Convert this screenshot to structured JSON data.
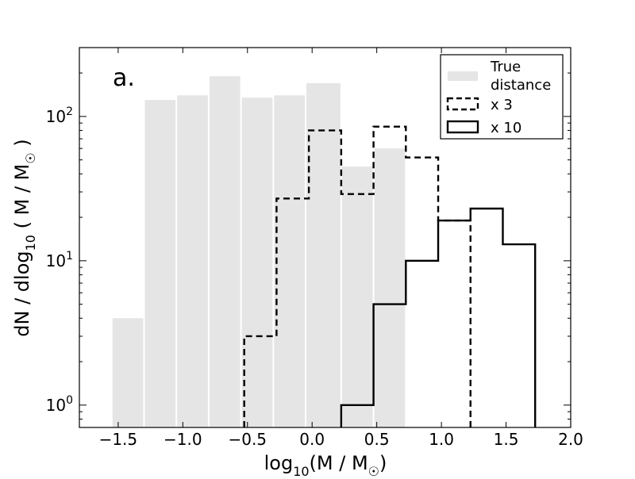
{
  "chart_data": {
    "type": "histogram",
    "panel_label": "a.",
    "xlabel": "log₁₀(M / M☉)",
    "xlabel_parts": {
      "pre": "log",
      "sub": "10",
      "mid": "(M / M",
      "sun": "☉",
      "post": ")"
    },
    "ylabel": "dN / dlog₁₀ ( M / M☉ )",
    "ylabel_parts": {
      "pre": "dN / dlog",
      "sub": "10",
      "mid": " ( M / M",
      "sun": "☉",
      "post": " )"
    },
    "xlim": [
      -1.8,
      2.0
    ],
    "ylim": [
      0.7,
      300
    ],
    "yscale": "log",
    "xticks": [
      -1.5,
      -1.0,
      -0.5,
      0.0,
      0.5,
      1.0,
      1.5,
      2.0
    ],
    "xtick_labels": [
      "−1.5",
      "−1.0",
      "−0.5",
      "0.0",
      "0.5",
      "1.0",
      "1.5",
      "2.0"
    ],
    "yticks": [
      {
        "value": 1,
        "base": "10",
        "exp": "0"
      },
      {
        "value": 10,
        "base": "10",
        "exp": "1"
      },
      {
        "value": 100,
        "base": "10",
        "exp": "2"
      }
    ],
    "grid": false,
    "legend_position": "top-right",
    "series": [
      {
        "name": "True distance",
        "legend_lines": [
          "True",
          "distance"
        ],
        "style": "filled",
        "color": "#e5e5e5",
        "bins": [
          {
            "x0": -1.55,
            "x1": -1.3,
            "value": 4
          },
          {
            "x0": -1.3,
            "x1": -1.05,
            "value": 130
          },
          {
            "x0": -1.05,
            "x1": -0.8,
            "value": 140
          },
          {
            "x0": -0.8,
            "x1": -0.55,
            "value": 190
          },
          {
            "x0": -0.55,
            "x1": -0.3,
            "value": 135
          },
          {
            "x0": -0.3,
            "x1": -0.05,
            "value": 140
          },
          {
            "x0": -0.05,
            "x1": 0.225,
            "value": 170
          },
          {
            "x0": 0.225,
            "x1": 0.475,
            "value": 45
          },
          {
            "x0": 0.475,
            "x1": 0.725,
            "value": 60
          }
        ]
      },
      {
        "name": "x 3",
        "style": "dashed-step",
        "color": "#000000",
        "bins": [
          {
            "x0": -0.525,
            "x1": -0.275,
            "value": 3
          },
          {
            "x0": -0.275,
            "x1": -0.025,
            "value": 27
          },
          {
            "x0": -0.025,
            "x1": 0.225,
            "value": 80
          },
          {
            "x0": 0.225,
            "x1": 0.475,
            "value": 29
          },
          {
            "x0": 0.475,
            "x1": 0.725,
            "value": 85
          },
          {
            "x0": 0.725,
            "x1": 0.975,
            "value": 52
          },
          {
            "x0": 0.975,
            "x1": 1.225,
            "value": 19
          }
        ]
      },
      {
        "name": "x 10",
        "style": "solid-step",
        "color": "#000000",
        "bins": [
          {
            "x0": 0.225,
            "x1": 0.475,
            "value": 1
          },
          {
            "x0": 0.475,
            "x1": 0.725,
            "value": 5
          },
          {
            "x0": 0.725,
            "x1": 0.975,
            "value": 10
          },
          {
            "x0": 0.975,
            "x1": 1.225,
            "value": 19
          },
          {
            "x0": 1.225,
            "x1": 1.475,
            "value": 23
          },
          {
            "x0": 1.475,
            "x1": 1.725,
            "value": 13
          }
        ]
      }
    ]
  }
}
